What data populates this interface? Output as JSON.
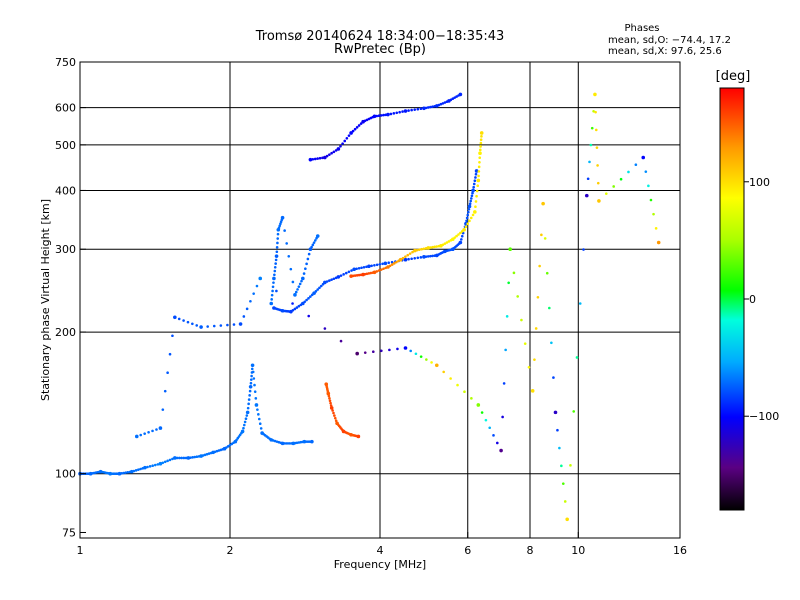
{
  "chart_data": {
    "type": "scatter",
    "title": "Tromsø 20140624 18:34:00−18:35:43",
    "subtitle": "RwPretec (Bp)",
    "stats": {
      "heading": "Phases",
      "line1": "mean, sd,O: −74.4, 17.2",
      "line2": "mean, sd,X:  97.6, 25.6"
    },
    "xlabel": "Frequency [MHz]",
    "ylabel": "Stationary phase Virtual Height [km]",
    "x_scale": "log2",
    "y_scale": "log",
    "xlim": [
      1,
      16
    ],
    "ylim": [
      73,
      750
    ],
    "x_ticks": [
      1,
      2,
      4,
      6,
      8,
      10,
      16
    ],
    "x_tick_labels": [
      "1",
      "2",
      "4",
      "6",
      "8",
      "10",
      "16"
    ],
    "y_ticks": [
      75,
      100,
      200,
      300,
      400,
      500,
      600,
      750
    ],
    "y_tick_labels": [
      "75",
      "100",
      "200",
      "300",
      "400",
      "500",
      "600",
      "750"
    ],
    "grid_x": [
      2,
      4,
      6,
      8,
      10
    ],
    "grid_y": [
      100,
      200,
      300,
      400,
      500,
      600
    ],
    "colorbar": {
      "label": "[deg]",
      "range": [
        -180,
        180
      ],
      "ticks": [
        100,
        0,
        -100
      ],
      "tick_labels": [
        "100",
        "0",
        "−100"
      ]
    },
    "series": [
      {
        "points": [
          [
            1.0,
            100,
            -75
          ],
          [
            1.05,
            100,
            -72
          ],
          [
            1.1,
            101,
            -70
          ],
          [
            1.15,
            100,
            -68
          ],
          [
            1.2,
            100,
            -72
          ],
          [
            1.27,
            101,
            -70
          ],
          [
            1.35,
            103,
            -70
          ],
          [
            1.45,
            105,
            -65
          ],
          [
            1.55,
            108,
            -70
          ],
          [
            1.65,
            108,
            -72
          ],
          [
            1.75,
            109,
            -68
          ],
          [
            1.85,
            111,
            -70
          ],
          [
            1.95,
            113,
            -72
          ],
          [
            2.05,
            117,
            -70
          ],
          [
            2.12,
            123,
            -68
          ],
          [
            2.17,
            135,
            -70
          ],
          [
            2.2,
            153,
            -72
          ],
          [
            2.22,
            170,
            -70
          ],
          [
            2.26,
            140,
            -68
          ],
          [
            2.32,
            122,
            -70
          ],
          [
            2.42,
            118,
            -70
          ],
          [
            2.55,
            116,
            -72
          ],
          [
            2.68,
            116,
            -70
          ],
          [
            2.82,
            117,
            -70
          ],
          [
            2.92,
            117,
            -72
          ]
        ]
      },
      {
        "points": [
          [
            3.12,
            155,
            150
          ],
          [
            3.15,
            148,
            150
          ],
          [
            3.2,
            138,
            160
          ],
          [
            3.28,
            128,
            150
          ],
          [
            3.38,
            123,
            160
          ],
          [
            3.5,
            121,
            150
          ],
          [
            3.62,
            120,
            160
          ]
        ]
      },
      {
        "points": [
          [
            2.45,
            225,
            -82
          ],
          [
            2.55,
            222,
            -80
          ],
          [
            2.65,
            221,
            -85
          ],
          [
            2.8,
            230,
            -80
          ],
          [
            2.95,
            242,
            -75
          ],
          [
            3.1,
            255,
            -80
          ],
          [
            3.3,
            262,
            -85
          ],
          [
            3.55,
            272,
            -80
          ],
          [
            3.8,
            276,
            -82
          ],
          [
            4.1,
            280,
            -80
          ],
          [
            4.5,
            285,
            -85
          ],
          [
            4.9,
            289,
            -80
          ],
          [
            5.2,
            291,
            -82
          ],
          [
            5.4,
            297,
            -80
          ],
          [
            5.6,
            300,
            -78
          ],
          [
            5.8,
            310,
            -82
          ],
          [
            5.95,
            340,
            -80
          ],
          [
            6.05,
            370,
            -78
          ],
          [
            6.15,
            400,
            -80
          ],
          [
            6.25,
            440,
            -82
          ]
        ]
      },
      {
        "points": [
          [
            3.5,
            263,
            155
          ],
          [
            3.7,
            265,
            160
          ],
          [
            3.9,
            268,
            150
          ],
          [
            4.15,
            275,
            140
          ],
          [
            4.4,
            285,
            120
          ],
          [
            4.7,
            298,
            110
          ],
          [
            5.0,
            302,
            100
          ],
          [
            5.3,
            305,
            95
          ],
          [
            5.6,
            315,
            90
          ],
          [
            5.9,
            330,
            95
          ],
          [
            6.2,
            360,
            92
          ],
          [
            6.3,
            420,
            95
          ],
          [
            6.35,
            480,
            92
          ],
          [
            6.4,
            530,
            100
          ]
        ]
      },
      {
        "points": [
          [
            2.9,
            465,
            -100
          ],
          [
            3.1,
            470,
            -110
          ],
          [
            3.3,
            490,
            -105
          ],
          [
            3.5,
            530,
            -100
          ],
          [
            3.7,
            560,
            -105
          ],
          [
            3.9,
            575,
            -100
          ],
          [
            4.15,
            580,
            -95
          ],
          [
            4.5,
            590,
            -95
          ],
          [
            4.9,
            598,
            -90
          ],
          [
            5.2,
            605,
            -88
          ],
          [
            5.5,
            620,
            -92
          ],
          [
            5.8,
            640,
            -90
          ]
        ]
      },
      {
        "points": [
          [
            2.42,
            230,
            -70
          ],
          [
            2.45,
            260,
            -72
          ],
          [
            2.48,
            290,
            -75
          ],
          [
            2.5,
            330,
            -70
          ],
          [
            2.55,
            350,
            -72
          ],
          [
            2.7,
            240,
            -70
          ],
          [
            2.8,
            260,
            -72
          ],
          [
            2.9,
            300,
            -75
          ],
          [
            3.0,
            320,
            -70
          ]
        ]
      },
      {
        "points": [
          [
            1.3,
            120,
            -70
          ],
          [
            1.45,
            125,
            -72
          ],
          [
            1.55,
            215,
            -80
          ],
          [
            1.75,
            205,
            -75
          ],
          [
            2.1,
            208,
            -80
          ],
          [
            2.3,
            260,
            -65
          ],
          [
            3.6,
            180,
            -150
          ],
          [
            4.5,
            185,
            -100
          ],
          [
            5.2,
            170,
            120
          ],
          [
            6.3,
            140,
            40
          ],
          [
            7.0,
            112,
            -140
          ],
          [
            7.3,
            300,
            30
          ],
          [
            8.1,
            150,
            100
          ],
          [
            8.5,
            375,
            110
          ],
          [
            9.0,
            135,
            -120
          ],
          [
            9.5,
            80,
            100
          ],
          [
            10.4,
            390,
            -120
          ],
          [
            10.8,
            640,
            95
          ],
          [
            11.0,
            380,
            110
          ],
          [
            13.5,
            470,
            -100
          ],
          [
            14.5,
            310,
            130
          ]
        ]
      }
    ]
  }
}
